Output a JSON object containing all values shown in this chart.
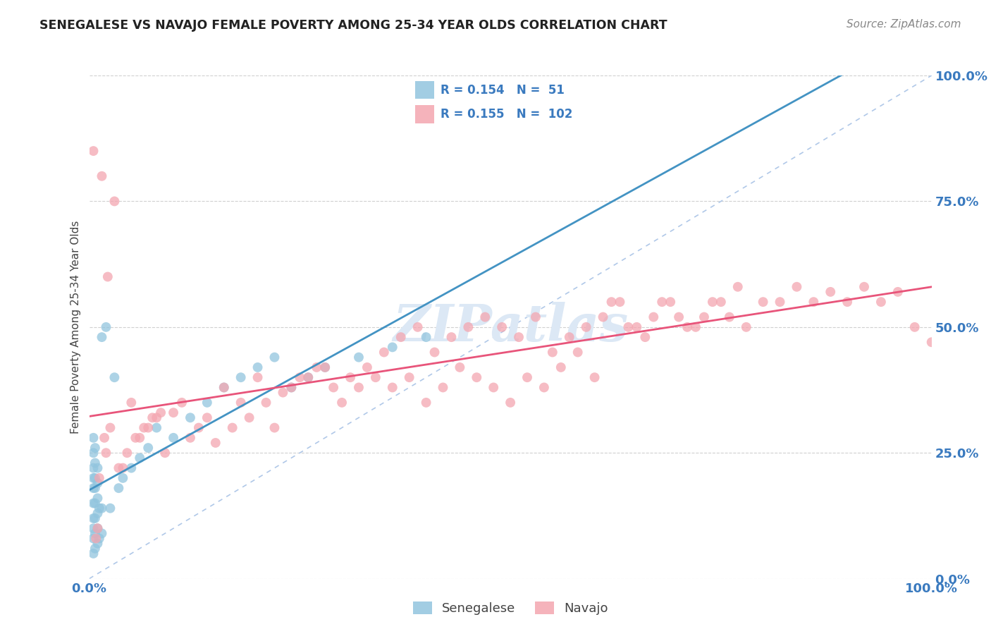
{
  "title": "SENEGALESE VS NAVAJO FEMALE POVERTY AMONG 25-34 YEAR OLDS CORRELATION CHART",
  "source": "Source: ZipAtlas.com",
  "ylabel": "Female Poverty Among 25-34 Year Olds",
  "ytick_labels": [
    "0.0%",
    "25.0%",
    "50.0%",
    "75.0%",
    "100.0%"
  ],
  "ytick_positions": [
    0.0,
    0.25,
    0.5,
    0.75,
    1.0
  ],
  "xtick_labels": [
    "0.0%",
    "100.0%"
  ],
  "xtick_positions": [
    0.0,
    1.0
  ],
  "legend_r_senegalese": "0.154",
  "legend_n_senegalese": "51",
  "legend_r_navajo": "0.155",
  "legend_n_navajo": "102",
  "senegalese_color": "#92c5de",
  "navajo_color": "#f4a6b0",
  "regression_senegalese_color": "#4393c3",
  "regression_navajo_color": "#e8547a",
  "diagonal_color": "#b0c8e8",
  "grid_color": "#d0d0d0",
  "background_color": "#ffffff",
  "watermark_color": "#dce8f5",
  "senegalese_x": [
    0.005,
    0.005,
    0.005,
    0.005,
    0.005,
    0.005,
    0.005,
    0.005,
    0.005,
    0.005,
    0.007,
    0.007,
    0.007,
    0.007,
    0.007,
    0.007,
    0.007,
    0.007,
    0.01,
    0.01,
    0.01,
    0.01,
    0.01,
    0.01,
    0.012,
    0.012,
    0.015,
    0.015,
    0.015,
    0.02,
    0.025,
    0.03,
    0.035,
    0.04,
    0.05,
    0.06,
    0.07,
    0.08,
    0.1,
    0.12,
    0.14,
    0.16,
    0.18,
    0.2,
    0.22,
    0.24,
    0.26,
    0.28,
    0.32,
    0.36,
    0.4
  ],
  "senegalese_y": [
    0.05,
    0.08,
    0.1,
    0.12,
    0.15,
    0.18,
    0.2,
    0.22,
    0.25,
    0.28,
    0.06,
    0.09,
    0.12,
    0.15,
    0.18,
    0.2,
    0.23,
    0.26,
    0.07,
    0.1,
    0.13,
    0.16,
    0.19,
    0.22,
    0.08,
    0.14,
    0.09,
    0.14,
    0.48,
    0.5,
    0.14,
    0.4,
    0.18,
    0.2,
    0.22,
    0.24,
    0.26,
    0.3,
    0.28,
    0.32,
    0.35,
    0.38,
    0.4,
    0.42,
    0.44,
    0.38,
    0.4,
    0.42,
    0.44,
    0.46,
    0.48
  ],
  "navajo_x": [
    0.005,
    0.01,
    0.015,
    0.02,
    0.025,
    0.03,
    0.04,
    0.05,
    0.06,
    0.07,
    0.08,
    0.09,
    0.1,
    0.11,
    0.12,
    0.13,
    0.14,
    0.16,
    0.18,
    0.2,
    0.22,
    0.24,
    0.26,
    0.28,
    0.3,
    0.32,
    0.34,
    0.36,
    0.38,
    0.4,
    0.42,
    0.44,
    0.46,
    0.48,
    0.5,
    0.52,
    0.54,
    0.56,
    0.58,
    0.6,
    0.62,
    0.64,
    0.66,
    0.68,
    0.7,
    0.72,
    0.74,
    0.76,
    0.78,
    0.8,
    0.82,
    0.84,
    0.86,
    0.88,
    0.9,
    0.92,
    0.94,
    0.96,
    0.98,
    1.0,
    0.008,
    0.012,
    0.018,
    0.022,
    0.035,
    0.045,
    0.055,
    0.065,
    0.075,
    0.085,
    0.15,
    0.17,
    0.19,
    0.21,
    0.23,
    0.25,
    0.27,
    0.29,
    0.31,
    0.33,
    0.35,
    0.37,
    0.39,
    0.41,
    0.43,
    0.45,
    0.47,
    0.49,
    0.51,
    0.53,
    0.55,
    0.57,
    0.59,
    0.61,
    0.63,
    0.65,
    0.67,
    0.69,
    0.71,
    0.73,
    0.75,
    0.77
  ],
  "navajo_y": [
    0.85,
    0.1,
    0.8,
    0.25,
    0.3,
    0.75,
    0.22,
    0.35,
    0.28,
    0.3,
    0.32,
    0.25,
    0.33,
    0.35,
    0.28,
    0.3,
    0.32,
    0.38,
    0.35,
    0.4,
    0.3,
    0.38,
    0.4,
    0.42,
    0.35,
    0.38,
    0.4,
    0.38,
    0.4,
    0.35,
    0.38,
    0.42,
    0.4,
    0.38,
    0.35,
    0.4,
    0.38,
    0.42,
    0.45,
    0.4,
    0.55,
    0.5,
    0.48,
    0.55,
    0.52,
    0.5,
    0.55,
    0.52,
    0.5,
    0.55,
    0.55,
    0.58,
    0.55,
    0.57,
    0.55,
    0.58,
    0.55,
    0.57,
    0.5,
    0.47,
    0.08,
    0.2,
    0.28,
    0.6,
    0.22,
    0.25,
    0.28,
    0.3,
    0.32,
    0.33,
    0.27,
    0.3,
    0.32,
    0.35,
    0.37,
    0.4,
    0.42,
    0.38,
    0.4,
    0.42,
    0.45,
    0.48,
    0.5,
    0.45,
    0.48,
    0.5,
    0.52,
    0.5,
    0.48,
    0.52,
    0.45,
    0.48,
    0.5,
    0.52,
    0.55,
    0.5,
    0.52,
    0.55,
    0.5,
    0.52,
    0.55,
    0.58
  ]
}
